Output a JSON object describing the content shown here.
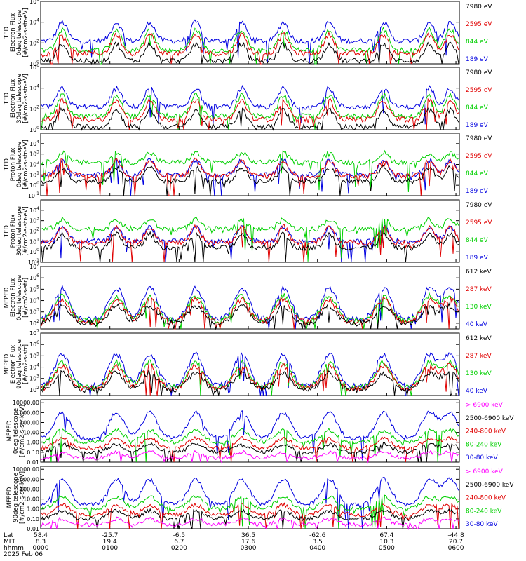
{
  "colors": {
    "black": "#000000",
    "red": "#e00000",
    "green": "#00d000",
    "blue": "#0000e0",
    "magenta": "#ff00ff"
  },
  "chart_data": [
    {
      "type": "line",
      "ylabel": [
        "TED",
        "Electron Flux",
        "0deg telescope",
        "[#/cm2-s-str-eV]"
      ],
      "ylog": true,
      "ylim": [
        1,
        1000000
      ],
      "yticks": [
        "10^0",
        "10^2",
        "10^4",
        "10^6"
      ],
      "yscale": {
        "min": 0,
        "max": 6,
        "ticks": [
          0,
          2,
          4,
          6
        ]
      },
      "series": [
        {
          "name": "7980 eV",
          "color": "#000000"
        },
        {
          "name": "2595 eV",
          "color": "#e00000"
        },
        {
          "name": "844 eV",
          "color": "#00d000"
        },
        {
          "name": "189 eV",
          "color": "#0000e0"
        }
      ]
    },
    {
      "type": "line",
      "ylabel": [
        "TED",
        "Electron Flux",
        "30deg telescope",
        "[#/cm2-s-str-eV]"
      ],
      "ylog": true,
      "ylim": [
        1,
        1000000
      ],
      "yticks": [
        "10^0",
        "10^2",
        "10^4",
        "10^6"
      ],
      "yscale": {
        "min": 0,
        "max": 6,
        "ticks": [
          0,
          2,
          4,
          6
        ]
      },
      "series": [
        {
          "name": "7980 eV",
          "color": "#000000"
        },
        {
          "name": "2595 eV",
          "color": "#e00000"
        },
        {
          "name": "844 eV",
          "color": "#00d000"
        },
        {
          "name": "189 eV",
          "color": "#0000e0"
        }
      ]
    },
    {
      "type": "line",
      "ylabel": [
        "TED",
        "Proton Flux",
        "0deg telescope",
        "[#/cm2-s-str-eV]"
      ],
      "ylog": true,
      "ylim": [
        0.1,
        100000
      ],
      "yticks": [
        "10^-1",
        "10^0",
        "10^1",
        "10^2",
        "10^3",
        "10^4"
      ],
      "yscale": {
        "min": -1,
        "max": 5,
        "ticks": [
          -1,
          0,
          1,
          2,
          3,
          4
        ]
      },
      "series": [
        {
          "name": "7980 eV",
          "color": "#000000"
        },
        {
          "name": "2595 eV",
          "color": "#e00000"
        },
        {
          "name": "844 eV",
          "color": "#00d000"
        },
        {
          "name": "189 eV",
          "color": "#0000e0"
        }
      ]
    },
    {
      "type": "line",
      "ylabel": [
        "TED",
        "Proton Flux",
        "30deg telescope",
        "[#/cm2-s-str-eV]"
      ],
      "ylog": true,
      "ylim": [
        0.1,
        100000
      ],
      "yticks": [
        "10^-1",
        "10^0",
        "10^1",
        "10^2",
        "10^3",
        "10^4"
      ],
      "yscale": {
        "min": -1,
        "max": 5,
        "ticks": [
          -1,
          0,
          1,
          2,
          3,
          4
        ]
      },
      "series": [
        {
          "name": "7980 eV",
          "color": "#000000"
        },
        {
          "name": "2595 eV",
          "color": "#e00000"
        },
        {
          "name": "844 eV",
          "color": "#00d000"
        },
        {
          "name": "189 eV",
          "color": "#0000e0"
        }
      ]
    },
    {
      "type": "line",
      "ylabel": [
        "MEPED",
        "Electron Flux",
        "0deg telescope",
        "[#/cm2-s-str]"
      ],
      "ylog": true,
      "ylim": [
        100,
        10000000
      ],
      "yticks": [
        "10^2",
        "10^3",
        "10^4",
        "10^5",
        "10^6",
        "10^7"
      ],
      "yscale": {
        "min": 1.5,
        "max": 7,
        "ticks": [
          2,
          3,
          4,
          5,
          6,
          7
        ]
      },
      "series": [
        {
          "name": "612 keV",
          "color": "#000000"
        },
        {
          "name": "287 keV",
          "color": "#e00000"
        },
        {
          "name": "130 keV",
          "color": "#00d000"
        },
        {
          "name": "40 keV",
          "color": "#0000e0"
        }
      ]
    },
    {
      "type": "line",
      "ylabel": [
        "MEPED",
        "Electron Flux",
        "90deg telescope",
        "[#/cm2-s-str]"
      ],
      "ylog": true,
      "ylim": [
        100,
        10000000
      ],
      "yticks": [
        "10^2",
        "10^3",
        "10^4",
        "10^5",
        "10^6",
        "10^7"
      ],
      "yscale": {
        "min": 1.5,
        "max": 7,
        "ticks": [
          2,
          3,
          4,
          5,
          6,
          7
        ]
      },
      "series": [
        {
          "name": "612 keV",
          "color": "#000000"
        },
        {
          "name": "287 keV",
          "color": "#e00000"
        },
        {
          "name": "130 keV",
          "color": "#00d000"
        },
        {
          "name": "40 keV",
          "color": "#0000e0"
        }
      ]
    },
    {
      "type": "line",
      "ylabel": [
        "MEPED",
        "0deg telescope",
        "[#/cm2-s-str-keV]"
      ],
      "ylog": true,
      "ylim": [
        0.01,
        10000
      ],
      "yticks": [
        "0.01",
        "0.10",
        "1.00",
        "10.00",
        "100.00",
        "1000.00",
        "10000.00"
      ],
      "yscale": {
        "min": -2,
        "max": 4.3,
        "ticks": [
          -2,
          -1,
          0,
          1,
          2,
          3,
          4
        ]
      },
      "series": [
        {
          "name": "> 6900 keV",
          "color": "#ff00ff"
        },
        {
          "name": "2500-6900 keV",
          "color": "#000000"
        },
        {
          "name": "240-800 keV",
          "color": "#e00000"
        },
        {
          "name": "80-240 keV",
          "color": "#00d000"
        },
        {
          "name": "30-80 keV",
          "color": "#0000e0"
        }
      ]
    },
    {
      "type": "line",
      "ylabel": [
        "MEPED",
        "90deg telescope",
        "[#/cm2-s-str-keV]"
      ],
      "ylog": true,
      "ylim": [
        0.01,
        10000
      ],
      "yticks": [
        "0.01",
        "0.10",
        "1.00",
        "10.00",
        "100.00",
        "1000.00",
        "10000.00"
      ],
      "yscale": {
        "min": -2,
        "max": 4.3,
        "ticks": [
          -2,
          -1,
          0,
          1,
          2,
          3,
          4
        ]
      },
      "series": [
        {
          "name": "> 6900 keV",
          "color": "#ff00ff"
        },
        {
          "name": "2500-6900 keV",
          "color": "#000000"
        },
        {
          "name": "240-800 keV",
          "color": "#e00000"
        },
        {
          "name": "80-240 keV",
          "color": "#00d000"
        },
        {
          "name": "30-80 keV",
          "color": "#0000e0"
        }
      ]
    }
  ],
  "x_axis": {
    "row_labels": [
      "Lat",
      "MLT",
      "hhmm",
      "2025 Feb 06"
    ],
    "columns": [
      {
        "lat": "58.4",
        "mlt": "8.3",
        "hhmm": "0000"
      },
      {
        "lat": "-25.7",
        "mlt": "19.4",
        "hhmm": "0100"
      },
      {
        "lat": "-6.5",
        "mlt": "6.7",
        "hhmm": "0200"
      },
      {
        "lat": "36.5",
        "mlt": "17.6",
        "hhmm": "0300"
      },
      {
        "lat": "-62.6",
        "mlt": "3.5",
        "hhmm": "0400"
      },
      {
        "lat": "67.4",
        "mlt": "10.3",
        "hhmm": "0500"
      },
      {
        "lat": "-44.8",
        "mlt": "20.7",
        "hhmm": "0600"
      }
    ]
  }
}
